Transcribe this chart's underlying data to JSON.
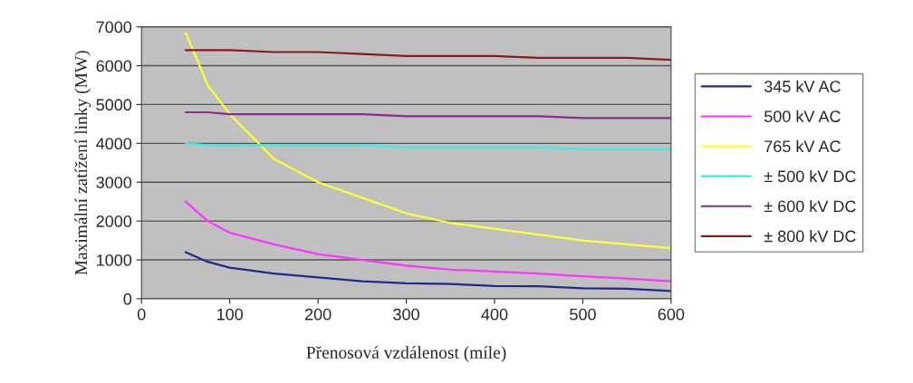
{
  "chart_data": {
    "type": "line",
    "xlabel": "Přenosová vzdálenost (míle)",
    "ylabel": "Maximální zatížení linky (MW)",
    "x": [
      50,
      75,
      100,
      150,
      200,
      250,
      300,
      350,
      400,
      450,
      500,
      550,
      600
    ],
    "series": [
      {
        "name": "345 kV AC",
        "color": "#1f2a8c",
        "values": [
          1200,
          950,
          800,
          650,
          550,
          450,
          400,
          380,
          330,
          320,
          270,
          260,
          200
        ]
      },
      {
        "name": "500 kV AC",
        "color": "#ff33ff",
        "values": [
          2500,
          2000,
          1700,
          1400,
          1150,
          1000,
          850,
          750,
          700,
          650,
          580,
          520,
          450
        ]
      },
      {
        "name": "765 kV AC",
        "color": "#ffff33",
        "values": [
          6850,
          5500,
          4750,
          3600,
          3000,
          2600,
          2200,
          1950,
          1800,
          1650,
          1500,
          1400,
          1300
        ]
      },
      {
        "name": "± 500 kV DC",
        "color": "#33eeee",
        "values": [
          4000,
          3950,
          3950,
          3950,
          3950,
          3950,
          3900,
          3900,
          3900,
          3900,
          3850,
          3850,
          3850
        ]
      },
      {
        "name": "± 600 kV DC",
        "color": "#8b2c91",
        "values": [
          4800,
          4800,
          4750,
          4750,
          4750,
          4750,
          4700,
          4700,
          4700,
          4700,
          4650,
          4650,
          4650
        ]
      },
      {
        "name": "± 800 kV DC",
        "color": "#8b1a1a",
        "values": [
          6400,
          6400,
          6400,
          6350,
          6350,
          6300,
          6250,
          6250,
          6250,
          6200,
          6200,
          6200,
          6150
        ]
      }
    ],
    "xlim": [
      0,
      600
    ],
    "xticks": [
      0,
      100,
      200,
      300,
      400,
      500,
      600
    ],
    "ylim": [
      0,
      7000
    ],
    "yticks": [
      0,
      1000,
      2000,
      3000,
      4000,
      5000,
      6000,
      7000
    ],
    "grid": "y",
    "legend": "right",
    "marker": "none",
    "line_style": "solid"
  }
}
